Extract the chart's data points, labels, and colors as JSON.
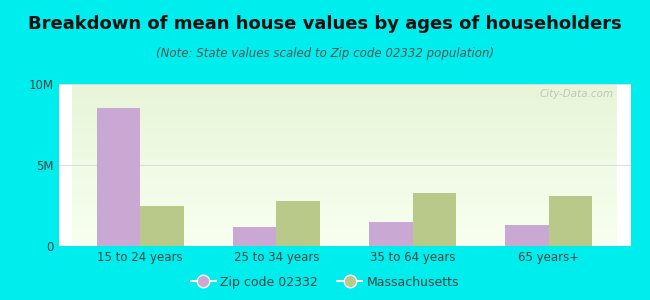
{
  "title": "Breakdown of mean house values by ages of householders",
  "subtitle": "(Note: State values scaled to Zip code 02332 population)",
  "categories": [
    "15 to 24 years",
    "25 to 34 years",
    "35 to 64 years",
    "65 years+"
  ],
  "zip_values": [
    8500000,
    1200000,
    1500000,
    1300000
  ],
  "state_values": [
    2500000,
    2800000,
    3300000,
    3100000
  ],
  "zip_color": "#c9a8d4",
  "state_color": "#b8c98a",
  "background_color": "#00eded",
  "ylim": [
    0,
    10000000
  ],
  "yticks": [
    0,
    5000000,
    10000000
  ],
  "ytick_labels": [
    "0",
    "5M",
    "10M"
  ],
  "zip_label": "Zip code 02332",
  "state_label": "Massachusetts",
  "bar_width": 0.32,
  "title_fontsize": 13,
  "subtitle_fontsize": 8.5,
  "tick_fontsize": 8.5,
  "legend_fontsize": 9,
  "watermark": "City-Data.com",
  "grid_color": "#dddddd",
  "plot_bg_colors": [
    "#e8f5d8",
    "#f8fff0"
  ],
  "text_color": "#444444"
}
